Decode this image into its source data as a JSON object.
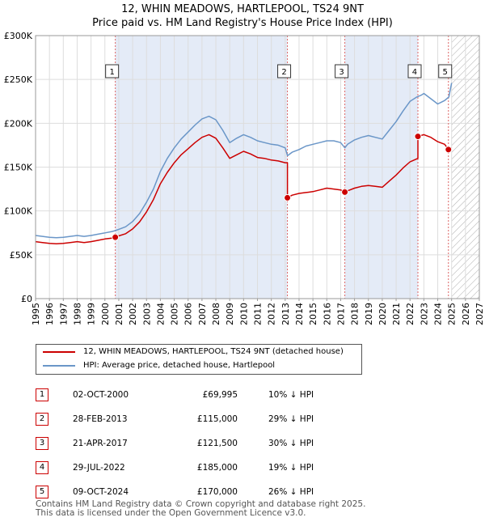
{
  "title_line1": "12, WHIN MEADOWS, HARTLEPOOL, TS24 9NT",
  "title_line2": "Price paid vs. HM Land Registry's House Price Index (HPI)",
  "colors": {
    "property": "#cc0000",
    "hpi": "#6a96c8",
    "shade": "#e4ebf7",
    "marker_line": "#dd6666"
  },
  "chart_data": {
    "type": "line",
    "title": "Price paid vs. HM Land Registry's House Price Index (HPI)",
    "xlim": [
      1995,
      2027
    ],
    "ylim": [
      0,
      300000
    ],
    "y_ticks": [
      {
        "value": 0,
        "label": "£0"
      },
      {
        "value": 50000,
        "label": "£50K"
      },
      {
        "value": 100000,
        "label": "£100K"
      },
      {
        "value": 150000,
        "label": "£150K"
      },
      {
        "value": 200000,
        "label": "£200K"
      },
      {
        "value": 250000,
        "label": "£250K"
      },
      {
        "value": 300000,
        "label": "£300K"
      }
    ],
    "x_ticks": [
      "1995",
      "1996",
      "1997",
      "1998",
      "1999",
      "2000",
      "2001",
      "2002",
      "2003",
      "2004",
      "2005",
      "2006",
      "2007",
      "2008",
      "2009",
      "2010",
      "2011",
      "2012",
      "2013",
      "2014",
      "2015",
      "2016",
      "2017",
      "2018",
      "2019",
      "2020",
      "2021",
      "2022",
      "2023",
      "2024",
      "2025",
      "2026",
      "2027"
    ],
    "data_end": 2025.0,
    "series": [
      {
        "name": "HPI: Average price, detached house, Hartlepool",
        "color": "#6a96c8",
        "points": [
          [
            1995,
            72000
          ],
          [
            1995.5,
            71000
          ],
          [
            1996,
            70000
          ],
          [
            1996.5,
            69500
          ],
          [
            1997,
            70000
          ],
          [
            1997.5,
            71000
          ],
          [
            1998,
            72000
          ],
          [
            1998.5,
            71000
          ],
          [
            1999,
            72000
          ],
          [
            1999.5,
            73500
          ],
          [
            2000,
            75000
          ],
          [
            2000.5,
            76500
          ],
          [
            2000.75,
            77500
          ],
          [
            2001,
            79000
          ],
          [
            2001.5,
            82000
          ],
          [
            2002,
            88000
          ],
          [
            2002.5,
            97000
          ],
          [
            2003,
            110000
          ],
          [
            2003.5,
            125000
          ],
          [
            2004,
            145000
          ],
          [
            2004.5,
            160000
          ],
          [
            2005,
            172000
          ],
          [
            2005.5,
            182000
          ],
          [
            2006,
            190000
          ],
          [
            2006.5,
            198000
          ],
          [
            2007,
            205000
          ],
          [
            2007.5,
            208000
          ],
          [
            2008,
            204000
          ],
          [
            2008.5,
            192000
          ],
          [
            2009,
            178000
          ],
          [
            2009.5,
            183000
          ],
          [
            2010,
            187000
          ],
          [
            2010.5,
            184000
          ],
          [
            2011,
            180000
          ],
          [
            2011.5,
            178000
          ],
          [
            2012,
            176000
          ],
          [
            2012.5,
            175000
          ],
          [
            2013,
            172000
          ],
          [
            2013.17,
            163000
          ],
          [
            2013.5,
            167000
          ],
          [
            2014,
            170000
          ],
          [
            2014.5,
            174000
          ],
          [
            2015,
            176000
          ],
          [
            2015.5,
            178000
          ],
          [
            2016,
            180000
          ],
          [
            2016.5,
            180000
          ],
          [
            2017,
            178000
          ],
          [
            2017.3,
            172000
          ],
          [
            2017.5,
            176000
          ],
          [
            2018,
            181000
          ],
          [
            2018.5,
            184000
          ],
          [
            2019,
            186000
          ],
          [
            2019.5,
            184000
          ],
          [
            2020,
            182000
          ],
          [
            2020.5,
            192000
          ],
          [
            2021,
            202000
          ],
          [
            2021.5,
            214000
          ],
          [
            2022,
            225000
          ],
          [
            2022.5,
            230000
          ],
          [
            2022.8,
            232000
          ],
          [
            2023,
            234000
          ],
          [
            2023.5,
            228000
          ],
          [
            2024,
            222000
          ],
          [
            2024.5,
            226000
          ],
          [
            2024.8,
            230000
          ],
          [
            2025,
            246000
          ]
        ]
      },
      {
        "name": "12, WHIN MEADOWS, HARTLEPOOL, TS24 9NT (detached house)",
        "color": "#cc0000",
        "points": [
          [
            1995,
            65000
          ],
          [
            1995.5,
            64000
          ],
          [
            1996,
            63000
          ],
          [
            1996.5,
            62500
          ],
          [
            1997,
            63000
          ],
          [
            1997.5,
            64000
          ],
          [
            1998,
            65000
          ],
          [
            1998.5,
            64000
          ],
          [
            1999,
            65000
          ],
          [
            1999.5,
            66500
          ],
          [
            2000,
            68000
          ],
          [
            2000.5,
            69000
          ],
          [
            2000.75,
            69995
          ],
          [
            2001,
            71500
          ],
          [
            2001.5,
            74000
          ],
          [
            2002,
            79500
          ],
          [
            2002.5,
            87500
          ],
          [
            2003,
            99000
          ],
          [
            2003.5,
            113000
          ],
          [
            2004,
            131000
          ],
          [
            2004.5,
            144000
          ],
          [
            2005,
            155000
          ],
          [
            2005.5,
            164000
          ],
          [
            2006,
            171000
          ],
          [
            2006.5,
            178000
          ],
          [
            2007,
            184000
          ],
          [
            2007.5,
            187000
          ],
          [
            2008,
            183000
          ],
          [
            2008.5,
            172000
          ],
          [
            2009,
            160000
          ],
          [
            2009.5,
            164000
          ],
          [
            2010,
            168000
          ],
          [
            2010.5,
            165000
          ],
          [
            2011,
            161000
          ],
          [
            2011.5,
            160000
          ],
          [
            2012,
            158000
          ],
          [
            2012.5,
            157000
          ],
          [
            2013,
            155000
          ],
          [
            2013.16,
            155000
          ],
          [
            2013.16,
            115000
          ],
          [
            2013.5,
            118000
          ],
          [
            2014,
            120000
          ],
          [
            2014.5,
            121000
          ],
          [
            2015,
            122000
          ],
          [
            2015.5,
            124000
          ],
          [
            2016,
            126000
          ],
          [
            2016.5,
            125000
          ],
          [
            2017,
            124000
          ],
          [
            2017.3,
            121500
          ],
          [
            2017.5,
            123000
          ],
          [
            2018,
            126000
          ],
          [
            2018.5,
            128000
          ],
          [
            2019,
            129000
          ],
          [
            2019.5,
            128000
          ],
          [
            2020,
            127000
          ],
          [
            2020.5,
            134000
          ],
          [
            2021,
            141000
          ],
          [
            2021.5,
            149000
          ],
          [
            2022,
            156000
          ],
          [
            2022.57,
            160000
          ],
          [
            2022.57,
            185000
          ],
          [
            2023,
            187000
          ],
          [
            2023.5,
            184000
          ],
          [
            2024,
            179000
          ],
          [
            2024.5,
            176000
          ],
          [
            2024.77,
            170000
          ],
          [
            2025,
            172000
          ]
        ]
      }
    ],
    "sales": [
      {
        "id": "1",
        "x": 2000.75,
        "price": 69995
      },
      {
        "id": "2",
        "x": 2013.16,
        "price": 115000
      },
      {
        "id": "3",
        "x": 2017.3,
        "price": 121500
      },
      {
        "id": "4",
        "x": 2022.57,
        "price": 185000
      },
      {
        "id": "5",
        "x": 2024.77,
        "price": 170000
      }
    ]
  },
  "legend": {
    "property": "12, WHIN MEADOWS, HARTLEPOOL, TS24 9NT (detached house)",
    "hpi": "HPI: Average price, detached house, Hartlepool"
  },
  "sales_table": [
    {
      "num": "1",
      "date": "02-OCT-2000",
      "price": "£69,995",
      "hpi": "10% ↓ HPI"
    },
    {
      "num": "2",
      "date": "28-FEB-2013",
      "price": "£115,000",
      "hpi": "29% ↓ HPI"
    },
    {
      "num": "3",
      "date": "21-APR-2017",
      "price": "£121,500",
      "hpi": "30% ↓ HPI"
    },
    {
      "num": "4",
      "date": "29-JUL-2022",
      "price": "£185,000",
      "hpi": "19% ↓ HPI"
    },
    {
      "num": "5",
      "date": "09-OCT-2024",
      "price": "£170,000",
      "hpi": "26% ↓ HPI"
    }
  ],
  "footer": {
    "line1": "Contains HM Land Registry data © Crown copyright and database right 2025.",
    "line2": "This data is licensed under the Open Government Licence v3.0."
  }
}
